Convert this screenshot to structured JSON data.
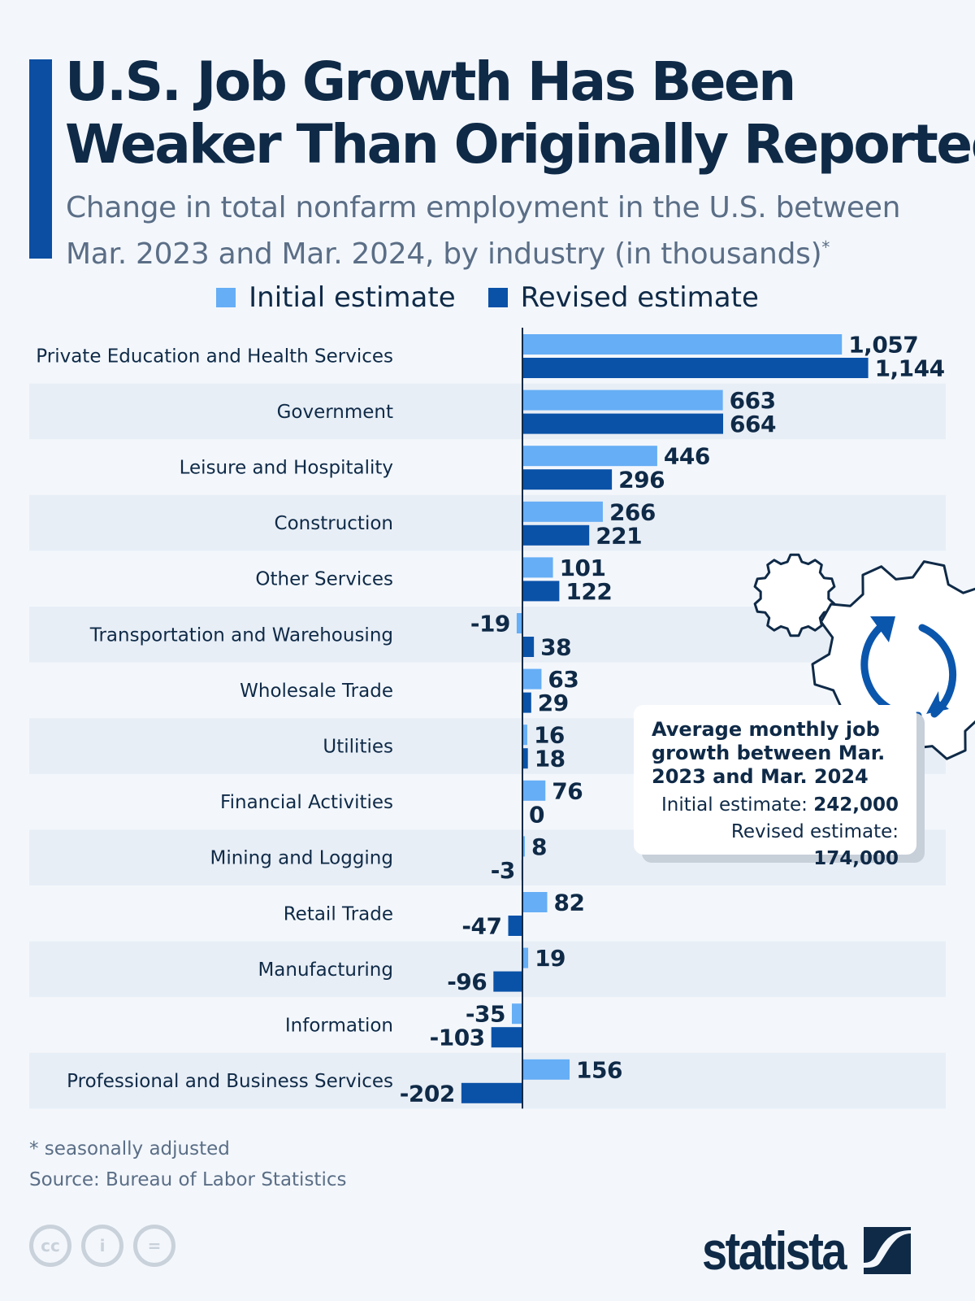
{
  "title_lines": [
    "U.S. Job Growth Has Been",
    "Weaker Than Originally Reported"
  ],
  "subtitle": "Change in total nonfarm employment in the U.S. between Mar. 2023 and Mar. 2024, by industry (in thousands)",
  "subtitle_mark": "*",
  "colors": {
    "initial": "#66aef5",
    "revised": "#0a52a8",
    "text": "#0f2a47",
    "accent": "#0b4ea2",
    "stripe": "#e8eef6"
  },
  "chart_data": {
    "type": "bar",
    "orientation": "horizontal",
    "categories": [
      "Private Education and Health Services",
      "Government",
      "Leisure and Hospitality",
      "Construction",
      "Other Services",
      "Transportation and Warehousing",
      "Wholesale Trade",
      "Utilities",
      "Financial Activities",
      "Mining and Logging",
      "Retail Trade",
      "Manufacturing",
      "Information",
      "Professional and Business Services"
    ],
    "series": [
      {
        "name": "Initial estimate",
        "values": [
          1057,
          663,
          446,
          266,
          101,
          -19,
          63,
          16,
          76,
          8,
          82,
          19,
          -35,
          156
        ],
        "labels": [
          "1,057",
          "663",
          "446",
          "266",
          "101",
          "-19",
          "63",
          "16",
          "76",
          "8",
          "82",
          "19",
          "-35",
          "156"
        ]
      },
      {
        "name": "Revised estimate",
        "values": [
          1144,
          664,
          296,
          221,
          122,
          38,
          29,
          18,
          0,
          -3,
          -47,
          -96,
          -103,
          -202
        ],
        "labels": [
          "1,144",
          "664",
          "296",
          "221",
          "122",
          "38",
          "29",
          "18",
          "0",
          "-3",
          "-47",
          "-96",
          "-103",
          "-202"
        ]
      }
    ],
    "legend": "top-center",
    "grid": false
  },
  "callout": {
    "heading": "Average monthly job growth between Mar. 2023 and Mar. 2024",
    "initial_label": "Initial estimate:",
    "initial_value": "242,000",
    "revised_label": "Revised estimate:",
    "revised_value": "174,000"
  },
  "footnote": "* seasonally adjusted",
  "source": "Source: Bureau of Labor Statistics",
  "logo": "statista",
  "license_icons": [
    "cc-icon",
    "attribution-icon",
    "no-derivatives-icon"
  ]
}
